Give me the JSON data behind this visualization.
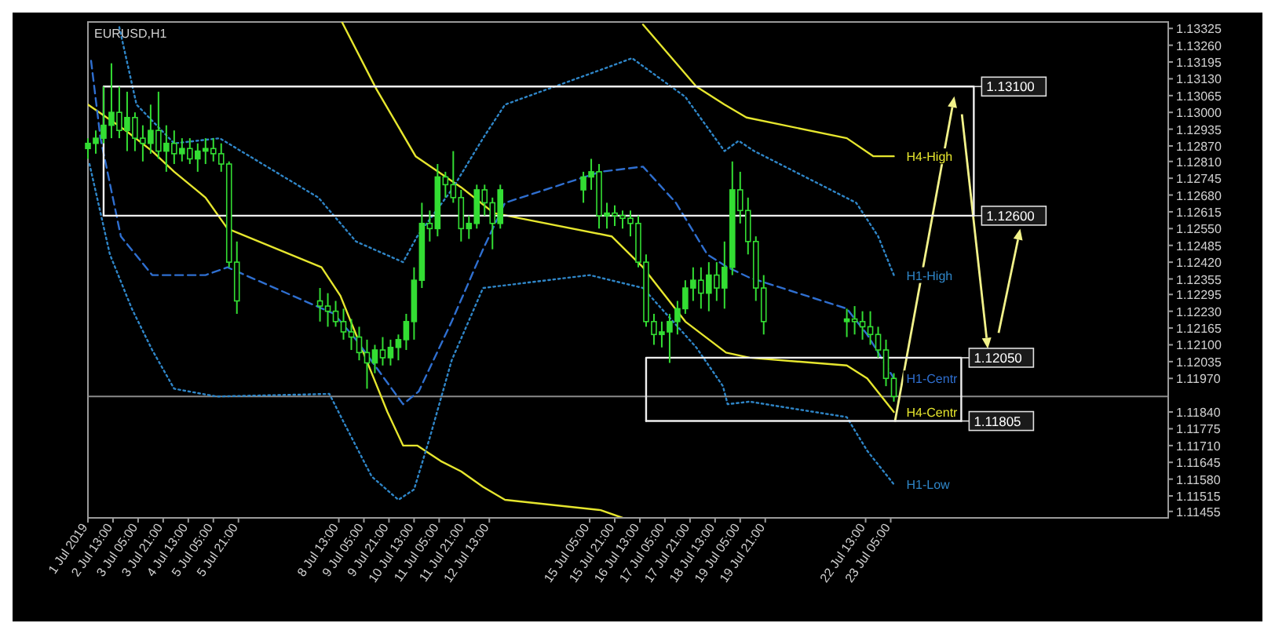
{
  "chart_data": {
    "type": "candlestick",
    "title": "EURUSD,H1",
    "color": "#33dd33",
    "x": [
      "2019-07-01T21:00",
      "2019-07-02T02:00",
      "2019-07-02T07:00",
      "2019-07-02T12:00",
      "2019-07-02T17:00",
      "2019-07-02T22:00",
      "2019-07-03T03:00",
      "2019-07-03T08:00",
      "2019-07-03T13:00",
      "2019-07-03T18:00",
      "2019-07-03T23:00",
      "2019-07-04T04:00",
      "2019-07-04T09:00",
      "2019-07-04T14:00",
      "2019-07-04T19:00",
      "2019-07-05T00:00",
      "2019-07-05T05:00",
      "2019-07-05T10:00",
      "2019-07-05T15:00",
      "2019-07-05T20:00",
      "2019-07-08T01:00",
      "2019-07-08T06:00",
      "2019-07-08T11:00",
      "2019-07-08T16:00",
      "2019-07-08T21:00",
      "2019-07-09T02:00",
      "2019-07-09T07:00",
      "2019-07-09T12:00",
      "2019-07-09T17:00",
      "2019-07-09T22:00",
      "2019-07-10T03:00",
      "2019-07-10T08:00",
      "2019-07-10T13:00",
      "2019-07-10T18:00",
      "2019-07-10T23:00",
      "2019-07-11T04:00",
      "2019-07-11T09:00",
      "2019-07-11T14:00",
      "2019-07-11T19:00",
      "2019-07-12T00:00",
      "2019-07-12T05:00",
      "2019-07-12T10:00",
      "2019-07-12T15:00",
      "2019-07-12T20:00",
      "2019-07-15T01:00",
      "2019-07-15T06:00",
      "2019-07-15T11:00",
      "2019-07-15T16:00",
      "2019-07-15T21:00",
      "2019-07-16T02:00",
      "2019-07-16T07:00",
      "2019-07-16T12:00",
      "2019-07-16T17:00",
      "2019-07-16T22:00",
      "2019-07-17T03:00",
      "2019-07-17T08:00",
      "2019-07-17T13:00",
      "2019-07-17T18:00",
      "2019-07-17T23:00",
      "2019-07-18T04:00",
      "2019-07-18T09:00",
      "2019-07-18T14:00",
      "2019-07-18T19:00",
      "2019-07-19T00:00",
      "2019-07-19T05:00",
      "2019-07-19T10:00",
      "2019-07-19T15:00",
      "2019-07-19T20:00",
      "2019-07-22T01:00",
      "2019-07-22T06:00",
      "2019-07-22T11:00",
      "2019-07-22T16:00",
      "2019-07-22T21:00",
      "2019-07-23T02:00",
      "2019-07-23T07:00"
    ],
    "ohlc": [
      [
        1.1286,
        1.129,
        1.1282,
        1.1288
      ],
      [
        1.1288,
        1.1293,
        1.1284,
        1.129
      ],
      [
        1.129,
        1.131,
        1.1288,
        1.1295
      ],
      [
        1.1295,
        1.1319,
        1.129,
        1.13
      ],
      [
        1.13,
        1.131,
        1.129,
        1.1293
      ],
      [
        1.1293,
        1.1308,
        1.1285,
        1.1298
      ],
      [
        1.1298,
        1.13,
        1.1285,
        1.129
      ],
      [
        1.129,
        1.1295,
        1.1281,
        1.1288
      ],
      [
        1.1288,
        1.1303,
        1.1284,
        1.1293
      ],
      [
        1.1293,
        1.1308,
        1.1282,
        1.1285
      ],
      [
        1.1285,
        1.1295,
        1.1277,
        1.1288
      ],
      [
        1.1288,
        1.1293,
        1.128,
        1.1284
      ],
      [
        1.1284,
        1.129,
        1.1281,
        1.1286
      ],
      [
        1.1286,
        1.129,
        1.128,
        1.1282
      ],
      [
        1.1282,
        1.1288,
        1.1277,
        1.1285
      ],
      [
        1.1285,
        1.129,
        1.128,
        1.1286
      ],
      [
        1.1286,
        1.129,
        1.1281,
        1.1284
      ],
      [
        1.1284,
        1.1288,
        1.1277,
        1.128
      ],
      [
        1.128,
        1.1281,
        1.124,
        1.1242
      ],
      [
        1.1242,
        1.125,
        1.1222,
        1.1227
      ],
      [
        1.1227,
        1.1232,
        1.1219,
        1.1225
      ],
      [
        1.1225,
        1.123,
        1.1217,
        1.1223
      ],
      [
        1.1223,
        1.1227,
        1.1217,
        1.1219
      ],
      [
        1.1219,
        1.1224,
        1.1212,
        1.1215
      ],
      [
        1.1215,
        1.122,
        1.1208,
        1.1213
      ],
      [
        1.1213,
        1.1217,
        1.1204,
        1.1207
      ],
      [
        1.1207,
        1.1212,
        1.1193,
        1.1203
      ],
      [
        1.1203,
        1.121,
        1.1199,
        1.1208
      ],
      [
        1.1208,
        1.1213,
        1.1202,
        1.1205
      ],
      [
        1.1205,
        1.1212,
        1.1202,
        1.1209
      ],
      [
        1.1209,
        1.1214,
        1.1204,
        1.1212
      ],
      [
        1.1212,
        1.1222,
        1.1208,
        1.1219
      ],
      [
        1.1219,
        1.124,
        1.1212,
        1.1235
      ],
      [
        1.1235,
        1.1265,
        1.1232,
        1.1257
      ],
      [
        1.1257,
        1.1262,
        1.125,
        1.1255
      ],
      [
        1.1255,
        1.128,
        1.1252,
        1.1275
      ],
      [
        1.1275,
        1.1277,
        1.1267,
        1.1272
      ],
      [
        1.1272,
        1.1285,
        1.1265,
        1.1267
      ],
      [
        1.1267,
        1.127,
        1.125,
        1.1255
      ],
      [
        1.1255,
        1.126,
        1.1251,
        1.1257
      ],
      [
        1.1257,
        1.1272,
        1.1255,
        1.127
      ],
      [
        1.127,
        1.1272,
        1.126,
        1.1265
      ],
      [
        1.1265,
        1.1267,
        1.1247,
        1.1257
      ],
      [
        1.1257,
        1.1272,
        1.1255,
        1.127
      ],
      [
        1.127,
        1.1277,
        1.1265,
        1.1275
      ],
      [
        1.1275,
        1.1282,
        1.127,
        1.1277
      ],
      [
        1.1277,
        1.128,
        1.1255,
        1.126
      ],
      [
        1.126,
        1.1265,
        1.1255,
        1.1261
      ],
      [
        1.1261,
        1.1264,
        1.1256,
        1.126
      ],
      [
        1.126,
        1.1262,
        1.1255,
        1.1259
      ],
      [
        1.1259,
        1.1262,
        1.1252,
        1.1257
      ],
      [
        1.1257,
        1.126,
        1.124,
        1.1242
      ],
      [
        1.1242,
        1.1245,
        1.1217,
        1.1219
      ],
      [
        1.1219,
        1.1222,
        1.121,
        1.1214
      ],
      [
        1.1214,
        1.1219,
        1.1209,
        1.1215
      ],
      [
        1.1215,
        1.1222,
        1.1203,
        1.1219
      ],
      [
        1.1219,
        1.1227,
        1.1214,
        1.1224
      ],
      [
        1.1224,
        1.1235,
        1.1222,
        1.1232
      ],
      [
        1.1232,
        1.124,
        1.1227,
        1.1235
      ],
      [
        1.1235,
        1.124,
        1.1224,
        1.123
      ],
      [
        1.123,
        1.1242,
        1.1223,
        1.1237
      ],
      [
        1.1237,
        1.1242,
        1.1227,
        1.1232
      ],
      [
        1.1232,
        1.125,
        1.1224,
        1.124
      ],
      [
        1.124,
        1.1281,
        1.1237,
        1.127
      ],
      [
        1.127,
        1.1277,
        1.1257,
        1.1262
      ],
      [
        1.1262,
        1.1267,
        1.1245,
        1.125
      ],
      [
        1.125,
        1.1252,
        1.1227,
        1.1232
      ],
      [
        1.1232,
        1.1237,
        1.1214,
        1.1219
      ],
      [
        1.1219,
        1.1224,
        1.1213,
        1.122
      ],
      [
        1.122,
        1.1225,
        1.1214,
        1.1219
      ],
      [
        1.1219,
        1.1223,
        1.1212,
        1.1217
      ],
      [
        1.1217,
        1.1223,
        1.121,
        1.1214
      ],
      [
        1.1214,
        1.1217,
        1.1205,
        1.1208
      ],
      [
        1.1208,
        1.1212,
        1.1194,
        1.1197
      ],
      [
        1.1197,
        1.1199,
        1.1188,
        1.119
      ]
    ],
    "series": [
      {
        "type": "line",
        "color": "#e6e62e",
        "line_style": "solid",
        "x": [
          "2019-07-01T21:00",
          "2019-07-02T21:00",
          "2019-07-03T14:00",
          "2019-07-04T04:00",
          "2019-07-05T00:00",
          "2019-07-05T14:00",
          "2019-07-08T02:00",
          "2019-07-08T14:00",
          "2019-07-09T00:00",
          "2019-07-09T10:00",
          "2019-07-09T20:00",
          "2019-07-10T06:00",
          "2019-07-10T15:00",
          "2019-07-11T06:00",
          "2019-07-11T19:00",
          "2019-07-12T09:00",
          "2019-07-12T23:00",
          "2019-07-15T12:00",
          "2019-07-16T02:00"
        ],
        "values": [
          1.1303,
          1.1293,
          1.1285,
          1.1277,
          1.1267,
          1.1255,
          1.124,
          1.1229,
          1.1214,
          1.1199,
          1.1184,
          1.1171,
          1.1171,
          1.1165,
          1.1161,
          1.1155,
          1.115,
          1.1146,
          1.1143
        ]
      },
      {
        "type": "line",
        "name": "H4-Centr",
        "color": "#e6e62e",
        "line_style": "solid",
        "x": [
          "2019-07-08T15:00",
          "2019-07-09T13:00",
          "2019-07-10T14:00",
          "2019-07-11T19:00",
          "2019-07-12T16:00",
          "2019-07-15T19:00",
          "2019-07-16T15:00",
          "2019-07-17T18:00",
          "2019-07-18T20:00",
          "2019-07-19T11:00",
          "2019-07-22T01:00",
          "2019-07-22T14:00",
          "2019-07-23T07:00"
        ],
        "values": [
          1.1335,
          1.1309,
          1.1283,
          1.1271,
          1.1261,
          1.1252,
          1.124,
          1.1219,
          1.1207,
          1.1205,
          1.1202,
          1.1197,
          1.1184
        ]
      },
      {
        "type": "line",
        "name": "H4-High",
        "color": "#e6e62e",
        "line_style": "solid",
        "x": [
          "2019-07-16T15:00",
          "2019-07-18T01:00",
          "2019-07-18T19:00",
          "2019-07-19T09:00",
          "2019-07-22T01:00",
          "2019-07-22T18:00",
          "2019-07-23T07:00"
        ],
        "values": [
          1.1334,
          1.131,
          1.1303,
          1.1298,
          1.129,
          1.1283,
          1.1283
        ]
      },
      {
        "type": "line",
        "name": "H1-High",
        "color": "#2f86c8",
        "line_style": "dotted",
        "x": [
          "2019-07-02T17:00",
          "2019-07-03T04:00",
          "2019-07-04T04:00",
          "2019-07-05T09:00",
          "2019-07-08T00:00",
          "2019-07-09T00:00",
          "2019-07-10T06:00",
          "2019-07-10T15:00",
          "2019-07-11T13:00",
          "2019-07-12T09:00",
          "2019-07-12T23:00",
          "2019-07-15T19:00",
          "2019-07-16T08:00",
          "2019-07-17T18:00",
          "2019-07-18T19:00",
          "2019-07-19T04:00",
          "2019-07-19T14:00",
          "2019-07-22T07:00",
          "2019-07-22T21:00",
          "2019-07-23T07:00"
        ],
        "values": [
          1.1333,
          1.1303,
          1.1288,
          1.129,
          1.1267,
          1.125,
          1.1242,
          1.1252,
          1.127,
          1.129,
          1.1303,
          1.1318,
          1.1321,
          1.1306,
          1.1285,
          1.1289,
          1.1285,
          1.1265,
          1.1252,
          1.1237
        ]
      },
      {
        "type": "line",
        "name": "H1-Centr",
        "color": "#2f6fd0",
        "line_style": "dashed",
        "x": [
          "2019-07-01T23:00",
          "2019-07-02T05:00",
          "2019-07-02T18:00",
          "2019-07-03T14:00",
          "2019-07-05T00:00",
          "2019-07-05T14:00",
          "2019-07-08T10:00",
          "2019-07-09T00:00",
          "2019-07-10T06:00",
          "2019-07-10T16:00",
          "2019-07-11T13:00",
          "2019-07-12T09:00",
          "2019-07-12T23:00",
          "2019-07-15T12:00",
          "2019-07-16T15:00",
          "2019-07-17T12:00",
          "2019-07-18T08:00",
          "2019-07-18T21:00",
          "2019-07-19T11:00",
          "2019-07-22T01:00",
          "2019-07-22T14:00",
          "2019-07-23T07:00"
        ],
        "values": [
          1.132,
          1.129,
          1.1252,
          1.1237,
          1.1237,
          1.124,
          1.1222,
          1.1212,
          1.1187,
          1.1192,
          1.1219,
          1.1247,
          1.1265,
          1.1277,
          1.1279,
          1.1265,
          1.1245,
          1.124,
          1.1236,
          1.1224,
          1.1214,
          1.1197
        ]
      },
      {
        "type": "line",
        "name": "H1-Low",
        "color": "#2f86c8",
        "line_style": "dotted",
        "x": [
          "2019-07-01T22:00",
          "2019-07-02T11:00",
          "2019-07-03T01:00",
          "2019-07-03T14:00",
          "2019-07-04T04:00",
          "2019-07-05T07:00",
          "2019-07-08T07:00",
          "2019-07-08T17:00",
          "2019-07-09T10:00",
          "2019-07-10T03:00",
          "2019-07-10T13:00",
          "2019-07-10T23:00",
          "2019-07-11T13:00",
          "2019-07-12T09:00",
          "2019-07-15T05:00",
          "2019-07-16T15:00",
          "2019-07-18T01:00",
          "2019-07-18T18:00",
          "2019-07-18T21:00",
          "2019-07-19T11:00",
          "2019-07-22T01:00",
          "2019-07-22T14:00",
          "2019-07-23T07:00"
        ],
        "values": [
          1.128,
          1.1245,
          1.1224,
          1.1208,
          1.1193,
          1.119,
          1.1191,
          1.1179,
          1.1159,
          1.115,
          1.1154,
          1.1174,
          1.1204,
          1.1232,
          1.1237,
          1.1232,
          1.1209,
          1.1194,
          1.1187,
          1.1188,
          1.1182,
          1.1169,
          1.1156
        ]
      },
      {
        "type": "line",
        "color": "#f0f0f0",
        "line_style": "solid",
        "x": [
          "2019-07-02T07:00",
          "2019-07-02T07:00",
          "2019-07-25T10:00",
          "2019-07-25T10:00"
        ],
        "values": [
          1.126,
          1.131,
          1.131,
          1.126
        ]
      },
      {
        "type": "line",
        "color": "#f0f0f0",
        "line_style": "solid",
        "x": [
          "2019-07-02T07:00",
          "2019-07-25T10:00"
        ],
        "values": [
          1.126,
          1.126
        ]
      },
      {
        "type": "line",
        "color": "#f0f0f0",
        "line_style": "solid",
        "x": [
          "2019-07-16T17:00",
          "2019-07-16T17:00",
          "2019-07-25T02:00",
          "2019-07-25T02:00"
        ],
        "values": [
          1.11805,
          1.1205,
          1.1205,
          1.11805
        ]
      },
      {
        "type": "line",
        "color": "#f0f0f0",
        "line_style": "solid",
        "x": [
          "2019-07-16T17:00",
          "2019-07-25T02:00"
        ],
        "values": [
          1.11805,
          1.11805
        ]
      }
    ],
    "xlim": [
      "2019-07-01T21:00",
      "2019-07-30T14:00"
    ],
    "ylim": [
      1.1143,
      1.1335
    ],
    "xticks": [
      {
        "value": "2019-07-01T21:00",
        "label": "1 Jul 2019"
      },
      {
        "value": "2019-07-02T13:00",
        "label": "2 Jul 13:00"
      },
      {
        "value": "2019-07-03T05:00",
        "label": "3 Jul 05:00"
      },
      {
        "value": "2019-07-03T21:00",
        "label": "3 Jul 21:00"
      },
      {
        "value": "2019-07-04T13:00",
        "label": "4 Jul 13:00"
      },
      {
        "value": "2019-07-05T05:00",
        "label": "5 Jul 05:00"
      },
      {
        "value": "2019-07-05T21:00",
        "label": "5 Jul 21:00"
      },
      {
        "value": "2019-07-08T13:00",
        "label": "8 Jul 13:00"
      },
      {
        "value": "2019-07-09T05:00",
        "label": "9 Jul 05:00"
      },
      {
        "value": "2019-07-09T21:00",
        "label": "9 Jul 21:00"
      },
      {
        "value": "2019-07-10T13:00",
        "label": "10 Jul 13:00"
      },
      {
        "value": "2019-07-11T05:00",
        "label": "11 Jul 05:00"
      },
      {
        "value": "2019-07-11T21:00",
        "label": "11 Jul 21:00"
      },
      {
        "value": "2019-07-12T13:00",
        "label": "12 Jul 13:00"
      },
      {
        "value": "2019-07-15T05:00",
        "label": "15 Jul 05:00"
      },
      {
        "value": "2019-07-15T21:00",
        "label": "15 Jul 21:00"
      },
      {
        "value": "2019-07-16T13:00",
        "label": "16 Jul 13:00"
      },
      {
        "value": "2019-07-17T05:00",
        "label": "17 Jul 05:00"
      },
      {
        "value": "2019-07-17T21:00",
        "label": "17 Jul 21:00"
      },
      {
        "value": "2019-07-18T13:00",
        "label": "18 Jul 13:00"
      },
      {
        "value": "2019-07-19T05:00",
        "label": "19 Jul 05:00"
      },
      {
        "value": "2019-07-19T21:00",
        "label": "19 Jul 21:00"
      },
      {
        "value": "2019-07-22T13:00",
        "label": "22 Jul 13:00"
      },
      {
        "value": "2019-07-23T05:00",
        "label": "23 Jul 05:00"
      }
    ],
    "yticks": [
      1.11455,
      1.11515,
      {
        "value": 1.1158,
        "label": "1.11580"
      },
      1.11645,
      {
        "value": 1.1171,
        "label": "1.11710"
      },
      1.11775,
      {
        "value": 1.1184,
        "label": "1.11840"
      },
      {
        "value": 1.1197,
        "label": "1.11970"
      },
      1.12035,
      {
        "value": 1.121,
        "label": "1.12100"
      },
      1.12165,
      {
        "value": 1.1223,
        "label": "1.12230"
      },
      1.12295,
      1.12355,
      {
        "value": 1.1242,
        "label": "1.12420"
      },
      1.12485,
      {
        "value": 1.1255,
        "label": "1.12550"
      },
      1.12615,
      {
        "value": 1.1268,
        "label": "1.12680"
      },
      1.12745,
      {
        "value": 1.1281,
        "label": "1.12810"
      },
      {
        "value": 1.1287,
        "label": "1.12870"
      },
      1.12935,
      {
        "value": 1.13,
        "label": "1.13000"
      },
      1.13065,
      {
        "value": 1.1313,
        "label": "1.13130"
      },
      1.13195,
      {
        "value": 1.1326,
        "label": "1.13260"
      },
      1.13325
    ],
    "ref_lines": [
      {
        "axis": "y",
        "value": 1.119,
        "color": "#8a8a8a"
      }
    ],
    "annotations": [
      {
        "text": "1.13100",
        "x": "2019-07-25T10:00",
        "y": 1.131
      },
      {
        "text": "1.12600",
        "x": "2019-07-25T10:00",
        "y": 1.126
      },
      {
        "text": "1.12050",
        "x": "2019-07-25T02:00",
        "y": 1.1205
      },
      {
        "text": "1.11805",
        "x": "2019-07-25T02:00",
        "y": 1.11805
      }
    ]
  }
}
